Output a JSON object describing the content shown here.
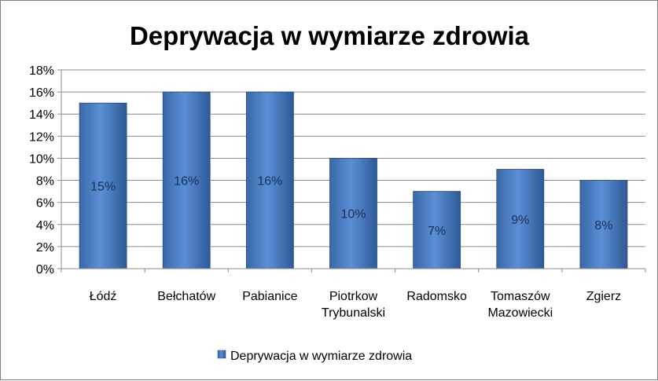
{
  "chart_data": {
    "type": "bar",
    "title": "Deprywacja w wymiarze zdrowia",
    "categories": [
      [
        "Łódź"
      ],
      [
        "Bełchatów"
      ],
      [
        "Pabianice"
      ],
      [
        "Piotrkow",
        "Trybunalski"
      ],
      [
        "Radomsko"
      ],
      [
        "Tomaszów",
        "Mazowiecki"
      ],
      [
        "Zgierz"
      ]
    ],
    "series": [
      {
        "name": "Deprywacja w wymiarze zdrowia",
        "values": [
          15,
          16,
          16,
          10,
          7,
          9,
          8
        ],
        "labels": [
          "15%",
          "16%",
          "16%",
          "10%",
          "7%",
          "9%",
          "8%"
        ],
        "color": "#4a7ebb"
      }
    ],
    "ylim": [
      0,
      18
    ],
    "yticks": [
      "0%",
      "2%",
      "4%",
      "6%",
      "8%",
      "10%",
      "12%",
      "14%",
      "16%",
      "18%"
    ],
    "grid": true,
    "legend_position": "bottom"
  }
}
